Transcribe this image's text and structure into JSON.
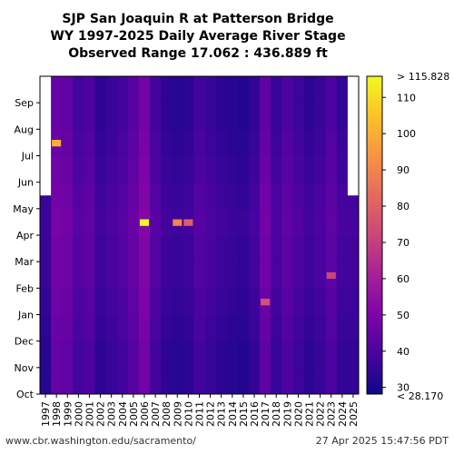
{
  "chart_data": {
    "type": "heatmap",
    "title_lines": [
      "SJP San Joaquin R at Patterson Bridge",
      "WY 1997-2025 Daily Average River Stage",
      "Observed Range 17.062 : 436.889 ft"
    ],
    "x_categories": [
      "1997",
      "1998",
      "1999",
      "2000",
      "2001",
      "2002",
      "2003",
      "2004",
      "2005",
      "2006",
      "2007",
      "2008",
      "2009",
      "2010",
      "2011",
      "2012",
      "2013",
      "2014",
      "2015",
      "2016",
      "2017",
      "2018",
      "2019",
      "2020",
      "2021",
      "2022",
      "2023",
      "2024",
      "2025"
    ],
    "y_categories": [
      "Oct",
      "Nov",
      "Dec",
      "Jan",
      "Feb",
      "Mar",
      "Apr",
      "May",
      "Jun",
      "Jul",
      "Aug",
      "Sep"
    ],
    "colorbar": {
      "min": 28.17,
      "max": 115.828,
      "ticks": [
        30,
        40,
        50,
        60,
        70,
        80,
        90,
        100,
        110
      ],
      "top_label": "> 115.828",
      "bottom_label": "< 28.170"
    },
    "year_base_values": [
      33,
      45,
      44,
      38,
      40,
      34,
      36,
      38,
      42,
      48,
      38,
      34,
      33,
      34,
      38,
      36,
      34,
      33,
      32,
      35,
      44,
      36,
      40,
      37,
      34,
      36,
      40,
      35,
      35
    ],
    "missing_data": [
      {
        "year": "1997",
        "from_month": "May",
        "to_month": "Sep",
        "note": "no data before mid-May 1997"
      },
      {
        "year": "2025",
        "from_month": "May",
        "to_month": "Sep",
        "note": "no data after late Apr 2025"
      }
    ],
    "notable_highs": [
      {
        "year": "2006",
        "month": "Apr",
        "value": 115.8
      },
      {
        "year": "1998",
        "month": "Jul",
        "value": 100
      },
      {
        "year": "2009",
        "month": "Apr",
        "value": 90
      },
      {
        "year": "2010",
        "month": "Apr",
        "value": 80
      },
      {
        "year": "2017",
        "month": "Jan",
        "value": 75
      },
      {
        "year": "2023",
        "month": "Feb",
        "value": 72
      }
    ]
  },
  "footer": {
    "source_url": "www.cbr.washington.edu/sacramento/",
    "timestamp": "27 Apr 2025 15:47:56 PDT"
  }
}
